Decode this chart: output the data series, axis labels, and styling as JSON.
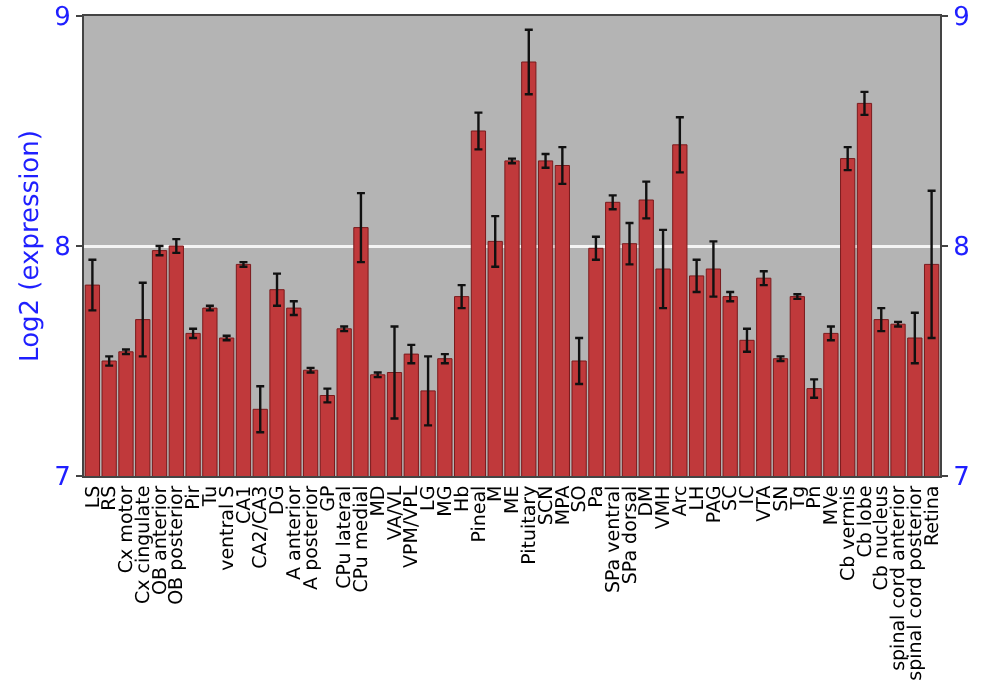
{
  "chart_data": {
    "type": "bar",
    "ylabel": "Log2 (expression)",
    "categories": [
      "LS",
      "RS",
      "Cx motor",
      "Cx cingulate",
      "OB anterior",
      "OB posterior",
      "Pir",
      "Tu",
      "ventral S",
      "CA1",
      "CA2/CA3",
      "DG",
      "A anterior",
      "A posterior",
      "GP",
      "CPu lateral",
      "CPu medial",
      "MD",
      "VA/VL",
      "VPM/VPL",
      "LG",
      "MG",
      "Hb",
      "Pineal",
      "M",
      "ME",
      "Pituitary",
      "SCN",
      "MPA",
      "SO",
      "Pa",
      "SPa ventral",
      "SPa dorsal",
      "DM",
      "VMH",
      "Arc",
      "LH",
      "PAG",
      "SC",
      "IC",
      "VTA",
      "SN",
      "Tg",
      "Pn",
      "MVe",
      "Cb vermis",
      "Cb lobe",
      "Cb nucleus",
      "spinal cord anterior",
      "spinal cord posterior",
      "Retina"
    ],
    "values": [
      7.83,
      7.5,
      7.54,
      7.68,
      7.98,
      8.0,
      7.62,
      7.73,
      7.6,
      7.92,
      7.29,
      7.81,
      7.73,
      7.46,
      7.35,
      7.64,
      8.08,
      7.44,
      7.45,
      7.53,
      7.37,
      7.51,
      7.78,
      8.5,
      8.02,
      8.37,
      8.8,
      8.37,
      8.35,
      7.5,
      7.99,
      8.19,
      8.01,
      8.2,
      7.9,
      8.44,
      7.87,
      7.9,
      7.78,
      7.59,
      7.86,
      7.51,
      7.78,
      7.38,
      7.62,
      8.38,
      8.62,
      7.68,
      7.66,
      7.6,
      7.92
    ],
    "errors": [
      0.11,
      0.02,
      0.01,
      0.16,
      0.02,
      0.03,
      0.02,
      0.01,
      0.01,
      0.01,
      0.1,
      0.07,
      0.03,
      0.01,
      0.03,
      0.01,
      0.15,
      0.01,
      0.2,
      0.04,
      0.15,
      0.02,
      0.05,
      0.08,
      0.11,
      0.01,
      0.14,
      0.03,
      0.08,
      0.1,
      0.05,
      0.03,
      0.09,
      0.08,
      0.17,
      0.12,
      0.07,
      0.12,
      0.02,
      0.05,
      0.03,
      0.01,
      0.01,
      0.04,
      0.03,
      0.05,
      0.05,
      0.05,
      0.01,
      0.11,
      0.32
    ],
    "color": "#c0393b",
    "ylim": [
      7,
      9
    ],
    "yticks": [
      7,
      8,
      9
    ],
    "y2lim": [
      7,
      9
    ],
    "y2ticks": [
      7,
      8,
      9
    ],
    "grid": "y"
  }
}
